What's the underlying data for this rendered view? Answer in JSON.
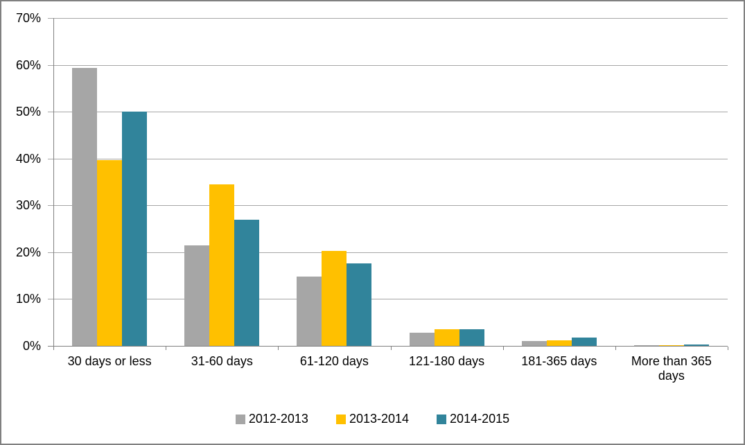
{
  "chart_data": {
    "type": "bar",
    "title": "",
    "xlabel": "",
    "ylabel": "",
    "categories": [
      "30 days or less",
      "31-60 days",
      "61-120 days",
      "121-180 days",
      "181-365 days",
      "More than 365 days"
    ],
    "series": [
      {
        "name": "2012-2013",
        "color": "#A6A6A6",
        "values": [
          59.3,
          21.4,
          14.8,
          2.8,
          1.1,
          0.2
        ]
      },
      {
        "name": "2013-2014",
        "color": "#FFC000",
        "values": [
          39.7,
          34.5,
          20.3,
          3.6,
          1.2,
          0.2
        ]
      },
      {
        "name": "2014-2015",
        "color": "#31849B",
        "values": [
          50.0,
          26.9,
          17.6,
          3.5,
          1.8,
          0.3
        ]
      }
    ],
    "ylim": [
      0,
      70
    ],
    "ytick_step": 10,
    "ytick_labels": [
      "0%",
      "10%",
      "20%",
      "30%",
      "40%",
      "50%",
      "60%",
      "70%"
    ],
    "grid": true,
    "legend_position": "bottom"
  },
  "colors": {
    "background": "#FFFFFF",
    "gridline": "#A6A6A6",
    "axis": "#808080",
    "border": "#808080",
    "text": "#000000"
  }
}
